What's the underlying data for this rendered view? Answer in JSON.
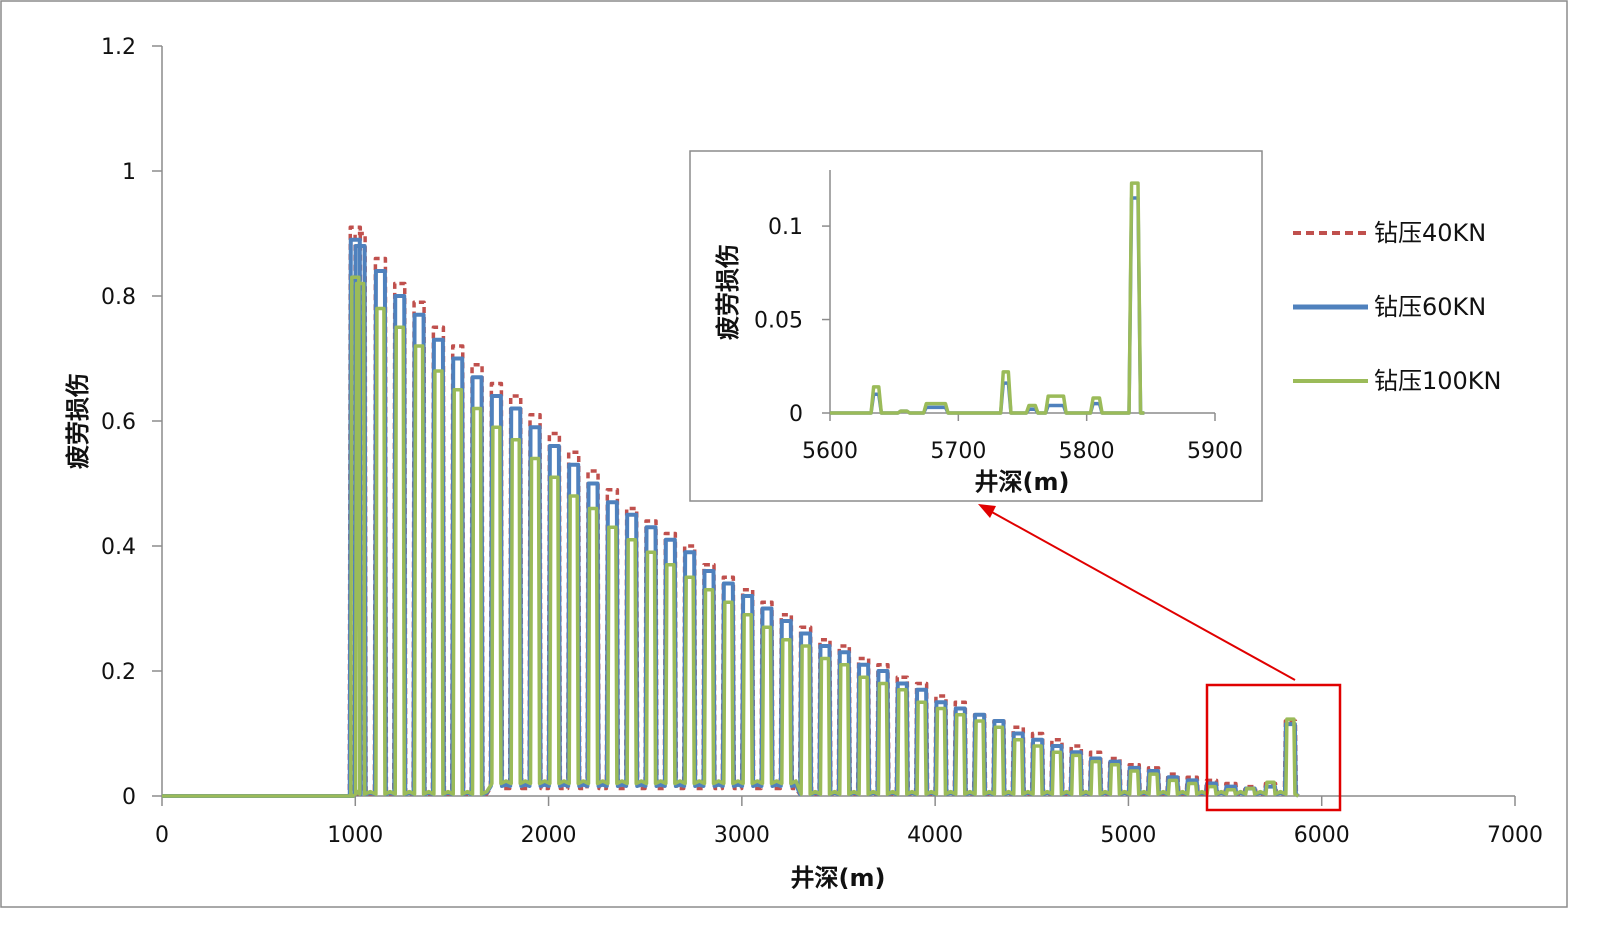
{
  "chart_data": {
    "type": "line",
    "xlabel": "井深(m)",
    "ylabel": "疲劳损伤",
    "xlim": [
      0,
      7000
    ],
    "ylim": [
      0,
      1.2
    ],
    "xticks": [
      "0",
      "1000",
      "2000",
      "3000",
      "4000",
      "5000",
      "6000",
      "7000"
    ],
    "yticks": [
      "0",
      "0.2",
      "0.4",
      "0.6",
      "0.8",
      "1",
      "1.2"
    ],
    "spike_positions": [
      1000,
      1025,
      1130,
      1230,
      1330,
      1430,
      1530,
      1630,
      1730,
      1830,
      1930,
      2030,
      2130,
      2230,
      2330,
      2430,
      2530,
      2630,
      2730,
      2830,
      2930,
      3030,
      3130,
      3230,
      3330,
      3430,
      3530,
      3630,
      3730,
      3830,
      3930,
      4030,
      4130,
      4230,
      4330,
      4430,
      4530,
      4630,
      4730,
      4830,
      4930,
      5030,
      5130,
      5230,
      5330,
      5430,
      5530,
      5630,
      5735,
      5838
    ],
    "series": [
      {
        "name": "钻压40KN",
        "color": "#C0504D",
        "style": "dashed",
        "peaks": [
          0.91,
          0.9,
          0.86,
          0.82,
          0.79,
          0.75,
          0.72,
          0.69,
          0.66,
          0.64,
          0.61,
          0.58,
          0.55,
          0.52,
          0.49,
          0.46,
          0.44,
          0.42,
          0.4,
          0.37,
          0.35,
          0.33,
          0.31,
          0.29,
          0.27,
          0.25,
          0.24,
          0.22,
          0.21,
          0.19,
          0.18,
          0.16,
          0.15,
          0.13,
          0.12,
          0.11,
          0.1,
          0.09,
          0.08,
          0.07,
          0.06,
          0.05,
          0.045,
          0.035,
          0.03,
          0.025,
          0.02,
          0.015,
          0.02,
          0.12
        ]
      },
      {
        "name": "钻压60KN",
        "color": "#4F81BD",
        "style": "solid",
        "peaks": [
          0.89,
          0.88,
          0.84,
          0.8,
          0.77,
          0.73,
          0.7,
          0.67,
          0.64,
          0.62,
          0.59,
          0.56,
          0.53,
          0.5,
          0.47,
          0.45,
          0.43,
          0.41,
          0.39,
          0.36,
          0.34,
          0.32,
          0.3,
          0.28,
          0.26,
          0.24,
          0.23,
          0.21,
          0.2,
          0.18,
          0.17,
          0.15,
          0.14,
          0.13,
          0.12,
          0.1,
          0.09,
          0.08,
          0.07,
          0.06,
          0.055,
          0.045,
          0.04,
          0.03,
          0.025,
          0.02,
          0.015,
          0.012,
          0.015,
          0.115
        ]
      },
      {
        "name": "钻压100KN",
        "color": "#9BBB59",
        "style": "solid",
        "peaks": [
          0.83,
          0.82,
          0.78,
          0.75,
          0.72,
          0.68,
          0.65,
          0.62,
          0.59,
          0.57,
          0.54,
          0.51,
          0.48,
          0.46,
          0.43,
          0.41,
          0.39,
          0.37,
          0.35,
          0.33,
          0.31,
          0.29,
          0.27,
          0.25,
          0.24,
          0.22,
          0.21,
          0.19,
          0.18,
          0.17,
          0.15,
          0.14,
          0.13,
          0.12,
          0.11,
          0.09,
          0.08,
          0.07,
          0.065,
          0.055,
          0.05,
          0.04,
          0.035,
          0.025,
          0.02,
          0.015,
          0.01,
          0.012,
          0.022,
          0.123
        ]
      }
    ],
    "legend_position": "right",
    "inset": {
      "xlabel": "井深(m)",
      "ylabel": "疲劳损伤",
      "xlim": [
        5600,
        5900
      ],
      "ylim": [
        0,
        0.13
      ],
      "xticks": [
        "5600",
        "5700",
        "5800",
        "5900"
      ],
      "yticks": [
        "0",
        "0.05",
        "0.1"
      ],
      "series": [
        {
          "name": "钻压60KN",
          "color": "#4F81BD",
          "points": [
            [
              5600,
              0
            ],
            [
              5632,
              0
            ],
            [
              5634,
              0.01
            ],
            [
              5638,
              0.01
            ],
            [
              5640,
              0
            ],
            [
              5653,
              0
            ],
            [
              5655,
              0.001
            ],
            [
              5660,
              0.001
            ],
            [
              5662,
              0
            ],
            [
              5673,
              0
            ],
            [
              5675,
              0.003
            ],
            [
              5690,
              0.003
            ],
            [
              5692,
              0
            ],
            [
              5733,
              0
            ],
            [
              5735,
              0.016
            ],
            [
              5739,
              0.016
            ],
            [
              5741,
              0
            ],
            [
              5753,
              0
            ],
            [
              5755,
              0.002
            ],
            [
              5760,
              0.002
            ],
            [
              5762,
              0
            ],
            [
              5768,
              0
            ],
            [
              5770,
              0.004
            ],
            [
              5782,
              0.004
            ],
            [
              5784,
              0
            ],
            [
              5803,
              0
            ],
            [
              5805,
              0.005
            ],
            [
              5810,
              0.005
            ],
            [
              5812,
              0
            ],
            [
              5833,
              0
            ],
            [
              5835,
              0.115
            ],
            [
              5840,
              0.115
            ],
            [
              5842,
              0
            ],
            [
              5845,
              0
            ]
          ]
        },
        {
          "name": "钻压100KN",
          "color": "#9BBB59",
          "points": [
            [
              5600,
              0
            ],
            [
              5632,
              0
            ],
            [
              5634,
              0.014
            ],
            [
              5638,
              0.014
            ],
            [
              5640,
              0
            ],
            [
              5653,
              0
            ],
            [
              5655,
              0.001
            ],
            [
              5660,
              0.001
            ],
            [
              5662,
              0
            ],
            [
              5673,
              0
            ],
            [
              5675,
              0.005
            ],
            [
              5690,
              0.005
            ],
            [
              5692,
              0
            ],
            [
              5733,
              0
            ],
            [
              5735,
              0.022
            ],
            [
              5739,
              0.022
            ],
            [
              5741,
              0
            ],
            [
              5753,
              0
            ],
            [
              5755,
              0.004
            ],
            [
              5760,
              0.004
            ],
            [
              5762,
              0
            ],
            [
              5768,
              0
            ],
            [
              5770,
              0.009
            ],
            [
              5782,
              0.009
            ],
            [
              5784,
              0
            ],
            [
              5803,
              0
            ],
            [
              5805,
              0.008
            ],
            [
              5810,
              0.008
            ],
            [
              5812,
              0
            ],
            [
              5833,
              0
            ],
            [
              5835,
              0.123
            ],
            [
              5840,
              0.123
            ],
            [
              5842,
              0
            ],
            [
              5845,
              0
            ]
          ]
        }
      ]
    }
  }
}
